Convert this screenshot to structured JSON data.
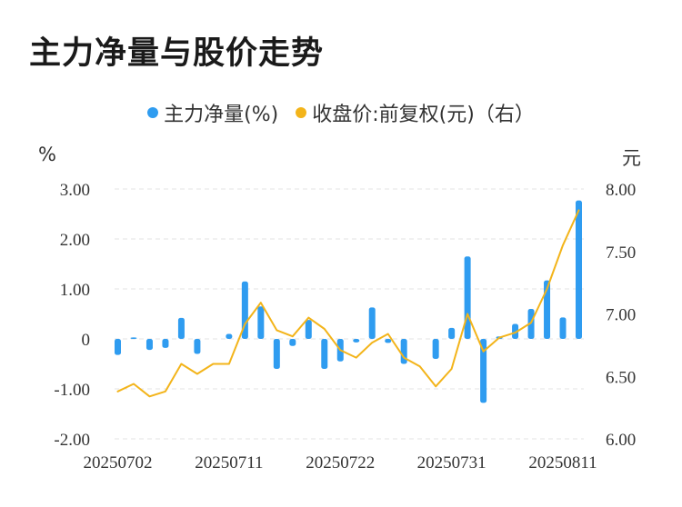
{
  "chart_data": {
    "type": "bar+line",
    "title": "主力净量与股价走势",
    "legend": [
      {
        "name": "主力净量(%)",
        "color": "#2f9cf0"
      },
      {
        "name": "收盘价:前复权(元)（右）",
        "color": "#f3b41a"
      }
    ],
    "left_unit": "%",
    "right_unit": "元",
    "left_ticks": [
      "3.00",
      "2.00",
      "1.00",
      "0",
      "-1.00",
      "-2.00"
    ],
    "right_ticks": [
      "8.00",
      "7.50",
      "7.00",
      "6.50",
      "6.00"
    ],
    "left_range": [
      -2,
      3
    ],
    "right_range": [
      6,
      8
    ],
    "x_tick_labels": [
      "20250702",
      "20250711",
      "20250722",
      "20250731",
      "20250811"
    ],
    "x_tick_indices": [
      0,
      7,
      14,
      21,
      28
    ],
    "series": [
      {
        "name": "主力净量(%)",
        "type": "bar",
        "axis": "left",
        "color": "#2f9cf0",
        "values": [
          -0.32,
          0.03,
          -0.22,
          -0.18,
          0.42,
          -0.3,
          0.0,
          0.1,
          1.15,
          0.65,
          -0.6,
          -0.14,
          0.38,
          -0.6,
          -0.45,
          -0.07,
          0.63,
          -0.08,
          -0.5,
          0.0,
          -0.4,
          0.22,
          1.65,
          -1.28,
          0.05,
          0.3,
          0.6,
          1.17,
          0.43,
          2.77
        ]
      },
      {
        "name": "收盘价:前复权(元)（右）",
        "type": "line",
        "axis": "right",
        "color": "#f3b41a",
        "values": [
          6.38,
          6.44,
          6.34,
          6.38,
          6.6,
          6.52,
          6.6,
          6.6,
          6.92,
          7.09,
          6.87,
          6.82,
          6.97,
          6.88,
          6.71,
          6.65,
          6.77,
          6.84,
          6.65,
          6.58,
          6.42,
          6.56,
          7.0,
          6.7,
          6.81,
          6.85,
          6.93,
          7.2,
          7.55,
          7.83
        ]
      }
    ]
  }
}
